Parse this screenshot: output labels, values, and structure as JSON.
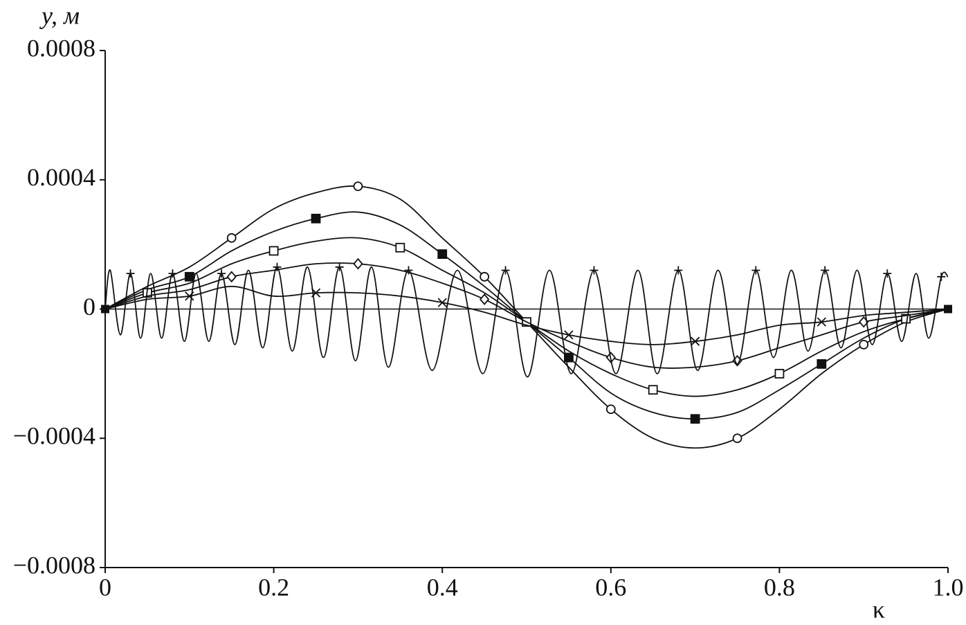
{
  "chart_data": {
    "type": "line",
    "y_label": "y, м",
    "x_label": "κ",
    "xlim": [
      0,
      1
    ],
    "xticks": [
      0,
      0.2,
      0.4,
      0.6,
      0.8,
      {
        "value": 1,
        "label": "1.0"
      }
    ],
    "ylim": [
      -0.0008,
      0.0008
    ],
    "yticks": [
      {
        "value": -0.0008,
        "label": "−0.0008"
      },
      {
        "value": -0.0004,
        "label": "−0.0004"
      },
      0,
      0.0004,
      0.0008
    ],
    "grid": false,
    "zero_line": true,
    "series": [
      {
        "color": "#111",
        "marker": "circle",
        "x": [
          0,
          0.05,
          0.1,
          0.15,
          0.2,
          0.25,
          0.3,
          0.35,
          0.4,
          0.45,
          0.5,
          0.55,
          0.6,
          0.65,
          0.7,
          0.75,
          0.8,
          0.85,
          0.9,
          0.95,
          1
        ],
        "values": [
          0,
          7e-05,
          0.00013,
          0.00022,
          0.00031,
          0.00036,
          0.00038,
          0.00034,
          0.00022,
          0.0001,
          -4e-05,
          -0.00018,
          -0.00031,
          -0.0004,
          -0.00043,
          -0.0004,
          -0.00031,
          -0.0002,
          -0.00011,
          -4e-05,
          0
        ]
      },
      {
        "color": "#111",
        "marker": "filled-square",
        "x": [
          0,
          0.05,
          0.1,
          0.15,
          0.2,
          0.25,
          0.3,
          0.35,
          0.4,
          0.45,
          0.5,
          0.55,
          0.6,
          0.65,
          0.7,
          0.75,
          0.8,
          0.85,
          0.9,
          0.95,
          1
        ],
        "values": [
          0,
          6e-05,
          0.0001,
          0.00018,
          0.00024,
          0.00028,
          0.0003,
          0.00026,
          0.00017,
          7e-05,
          -4e-05,
          -0.00015,
          -0.00026,
          -0.00032,
          -0.00034,
          -0.00032,
          -0.00025,
          -0.00017,
          -9e-05,
          -3e-05,
          0
        ]
      },
      {
        "color": "#111",
        "marker": "open-square",
        "x": [
          0,
          0.05,
          0.1,
          0.15,
          0.2,
          0.25,
          0.3,
          0.35,
          0.4,
          0.45,
          0.5,
          0.55,
          0.6,
          0.65,
          0.7,
          0.75,
          0.8,
          0.85,
          0.9,
          0.95,
          1
        ],
        "values": [
          0,
          5e-05,
          8e-05,
          0.00014,
          0.00018,
          0.00021,
          0.00022,
          0.00019,
          0.00012,
          5e-05,
          -4e-05,
          -0.00013,
          -0.0002,
          -0.00025,
          -0.00027,
          -0.00025,
          -0.0002,
          -0.00013,
          -7e-05,
          -3e-05,
          0
        ]
      },
      {
        "color": "#111",
        "marker": "diamond",
        "x": [
          0,
          0.05,
          0.1,
          0.15,
          0.2,
          0.25,
          0.3,
          0.35,
          0.4,
          0.45,
          0.5,
          0.55,
          0.6,
          0.65,
          0.7,
          0.75,
          0.8,
          0.85,
          0.9,
          0.95,
          1
        ],
        "values": [
          0,
          4e-05,
          6e-05,
          0.0001,
          0.00012,
          0.00014,
          0.00014,
          0.00012,
          8e-05,
          3e-05,
          -4e-05,
          -0.0001,
          -0.00015,
          -0.00018,
          -0.00018,
          -0.00016,
          -0.00012,
          -8e-05,
          -4e-05,
          -2e-05,
          0
        ]
      },
      {
        "color": "#111",
        "marker": "cross",
        "x": [
          0,
          0.05,
          0.1,
          0.15,
          0.2,
          0.25,
          0.3,
          0.35,
          0.4,
          0.45,
          0.5,
          0.55,
          0.6,
          0.65,
          0.7,
          0.75,
          0.8,
          0.85,
          0.9,
          0.95,
          1
        ],
        "values": [
          0,
          3e-05,
          4e-05,
          7e-05,
          4e-05,
          5e-05,
          5e-05,
          4e-05,
          2e-05,
          -1e-05,
          -5e-05,
          -8e-05,
          -0.0001,
          -0.00011,
          -0.0001,
          -8e-05,
          -5e-05,
          -4e-05,
          -2e-05,
          -1e-05,
          0
        ]
      },
      {
        "color": "#111",
        "marker": "plus",
        "x": [
          0,
          0.006,
          0.018,
          0.03,
          0.042,
          0.054,
          0.067,
          0.08,
          0.094,
          0.108,
          0.123,
          0.138,
          0.154,
          0.17,
          0.187,
          0.204,
          0.222,
          0.24,
          0.259,
          0.278,
          0.297,
          0.316,
          0.336,
          0.36,
          0.388,
          0.418,
          0.448,
          0.475,
          0.501,
          0.527,
          0.553,
          0.58,
          0.606,
          0.632,
          0.655,
          0.68,
          0.703,
          0.727,
          0.75,
          0.772,
          0.793,
          0.814,
          0.834,
          0.854,
          0.873,
          0.892,
          0.91,
          0.928,
          0.945,
          0.962,
          0.977,
          0.992,
          1
        ],
        "values": [
          0,
          0.00012,
          -8e-05,
          0.00011,
          -9e-05,
          0.00011,
          -9e-05,
          0.00011,
          -0.0001,
          0.00011,
          -0.0001,
          0.00011,
          -0.00011,
          0.00012,
          -0.00012,
          0.00013,
          -0.00013,
          0.00013,
          -0.00015,
          0.00013,
          -0.00016,
          0.00013,
          -0.00018,
          0.00012,
          -0.00019,
          0.00012,
          -0.0002,
          0.00012,
          -0.00021,
          0.00012,
          -0.0002,
          0.00012,
          -0.0002,
          0.00012,
          -0.0002,
          0.00012,
          -0.00019,
          0.00012,
          -0.00017,
          0.00012,
          -0.00015,
          0.00012,
          -0.00013,
          0.00012,
          -0.00012,
          0.00012,
          -0.00011,
          0.00011,
          -0.0001,
          0.00011,
          -9e-05,
          0.0001,
          0.0001
        ]
      }
    ]
  }
}
